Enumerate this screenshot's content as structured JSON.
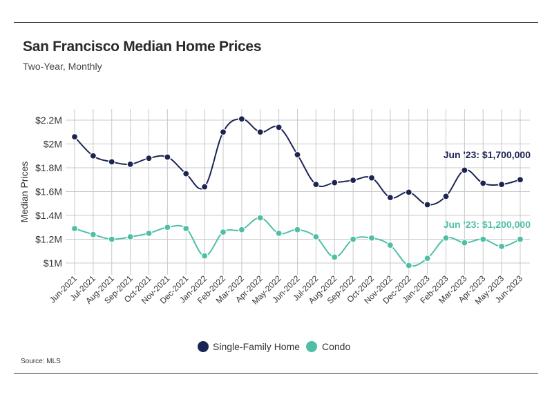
{
  "header": {
    "title": "San Francisco Median Home Prices",
    "subtitle": "Two-Year, Monthly"
  },
  "footer": {
    "source": "Source:  MLS"
  },
  "colors": {
    "single_family": "#1c2452",
    "condo": "#4ebfa6",
    "grid": "#c8c8c8"
  },
  "chart_data": {
    "type": "line",
    "title": "San Francisco Median Home Prices",
    "subtitle": "Two-Year, Monthly",
    "xlabel": "",
    "ylabel": "Median Prices",
    "ylim": [
      900000,
      2250000
    ],
    "yticks": [
      1000000,
      1200000,
      1400000,
      1600000,
      1800000,
      2000000,
      2200000
    ],
    "ytick_labels": [
      "$1M",
      "$1.2M",
      "$1.4M",
      "$1.6M",
      "$1.8M",
      "$2M",
      "$2.2M"
    ],
    "grid": true,
    "legend_position": "bottom-center",
    "categories": [
      "Jun-2021",
      "Jul-2021",
      "Aug-2021",
      "Sep-2021",
      "Oct-2021",
      "Nov-2021",
      "Dec-2021",
      "Jan-2022",
      "Feb-2022",
      "Mar-2022",
      "Apr-2022",
      "May-2022",
      "Jun-2022",
      "Jul-2022",
      "Aug-2022",
      "Sep-2022",
      "Oct-2022",
      "Nov-2022",
      "Dec-2022",
      "Jan-2023",
      "Feb-2023",
      "Mar-2023",
      "Apr-2023",
      "May-2023",
      "Jun-2023"
    ],
    "series": [
      {
        "name": "Single-Family Home",
        "color": "#1c2452",
        "values": [
          2060000,
          1900000,
          1850000,
          1830000,
          1880000,
          1890000,
          1750000,
          1640000,
          2100000,
          2210000,
          2100000,
          2140000,
          1910000,
          1660000,
          1675000,
          1695000,
          1715000,
          1550000,
          1595000,
          1490000,
          1560000,
          1780000,
          1670000,
          1660000,
          1700000
        ]
      },
      {
        "name": "Condo",
        "color": "#4ebfa6",
        "values": [
          1290000,
          1240000,
          1200000,
          1220000,
          1250000,
          1300000,
          1290000,
          1060000,
          1260000,
          1280000,
          1380000,
          1250000,
          1280000,
          1220000,
          1050000,
          1200000,
          1210000,
          1150000,
          980000,
          1040000,
          1210000,
          1170000,
          1200000,
          1140000,
          1200000
        ]
      }
    ],
    "annotations": [
      {
        "series": "Single-Family Home",
        "text": "Jun '23: $1,700,000"
      },
      {
        "series": "Condo",
        "text": "Jun '23: $1,200,000"
      }
    ]
  }
}
